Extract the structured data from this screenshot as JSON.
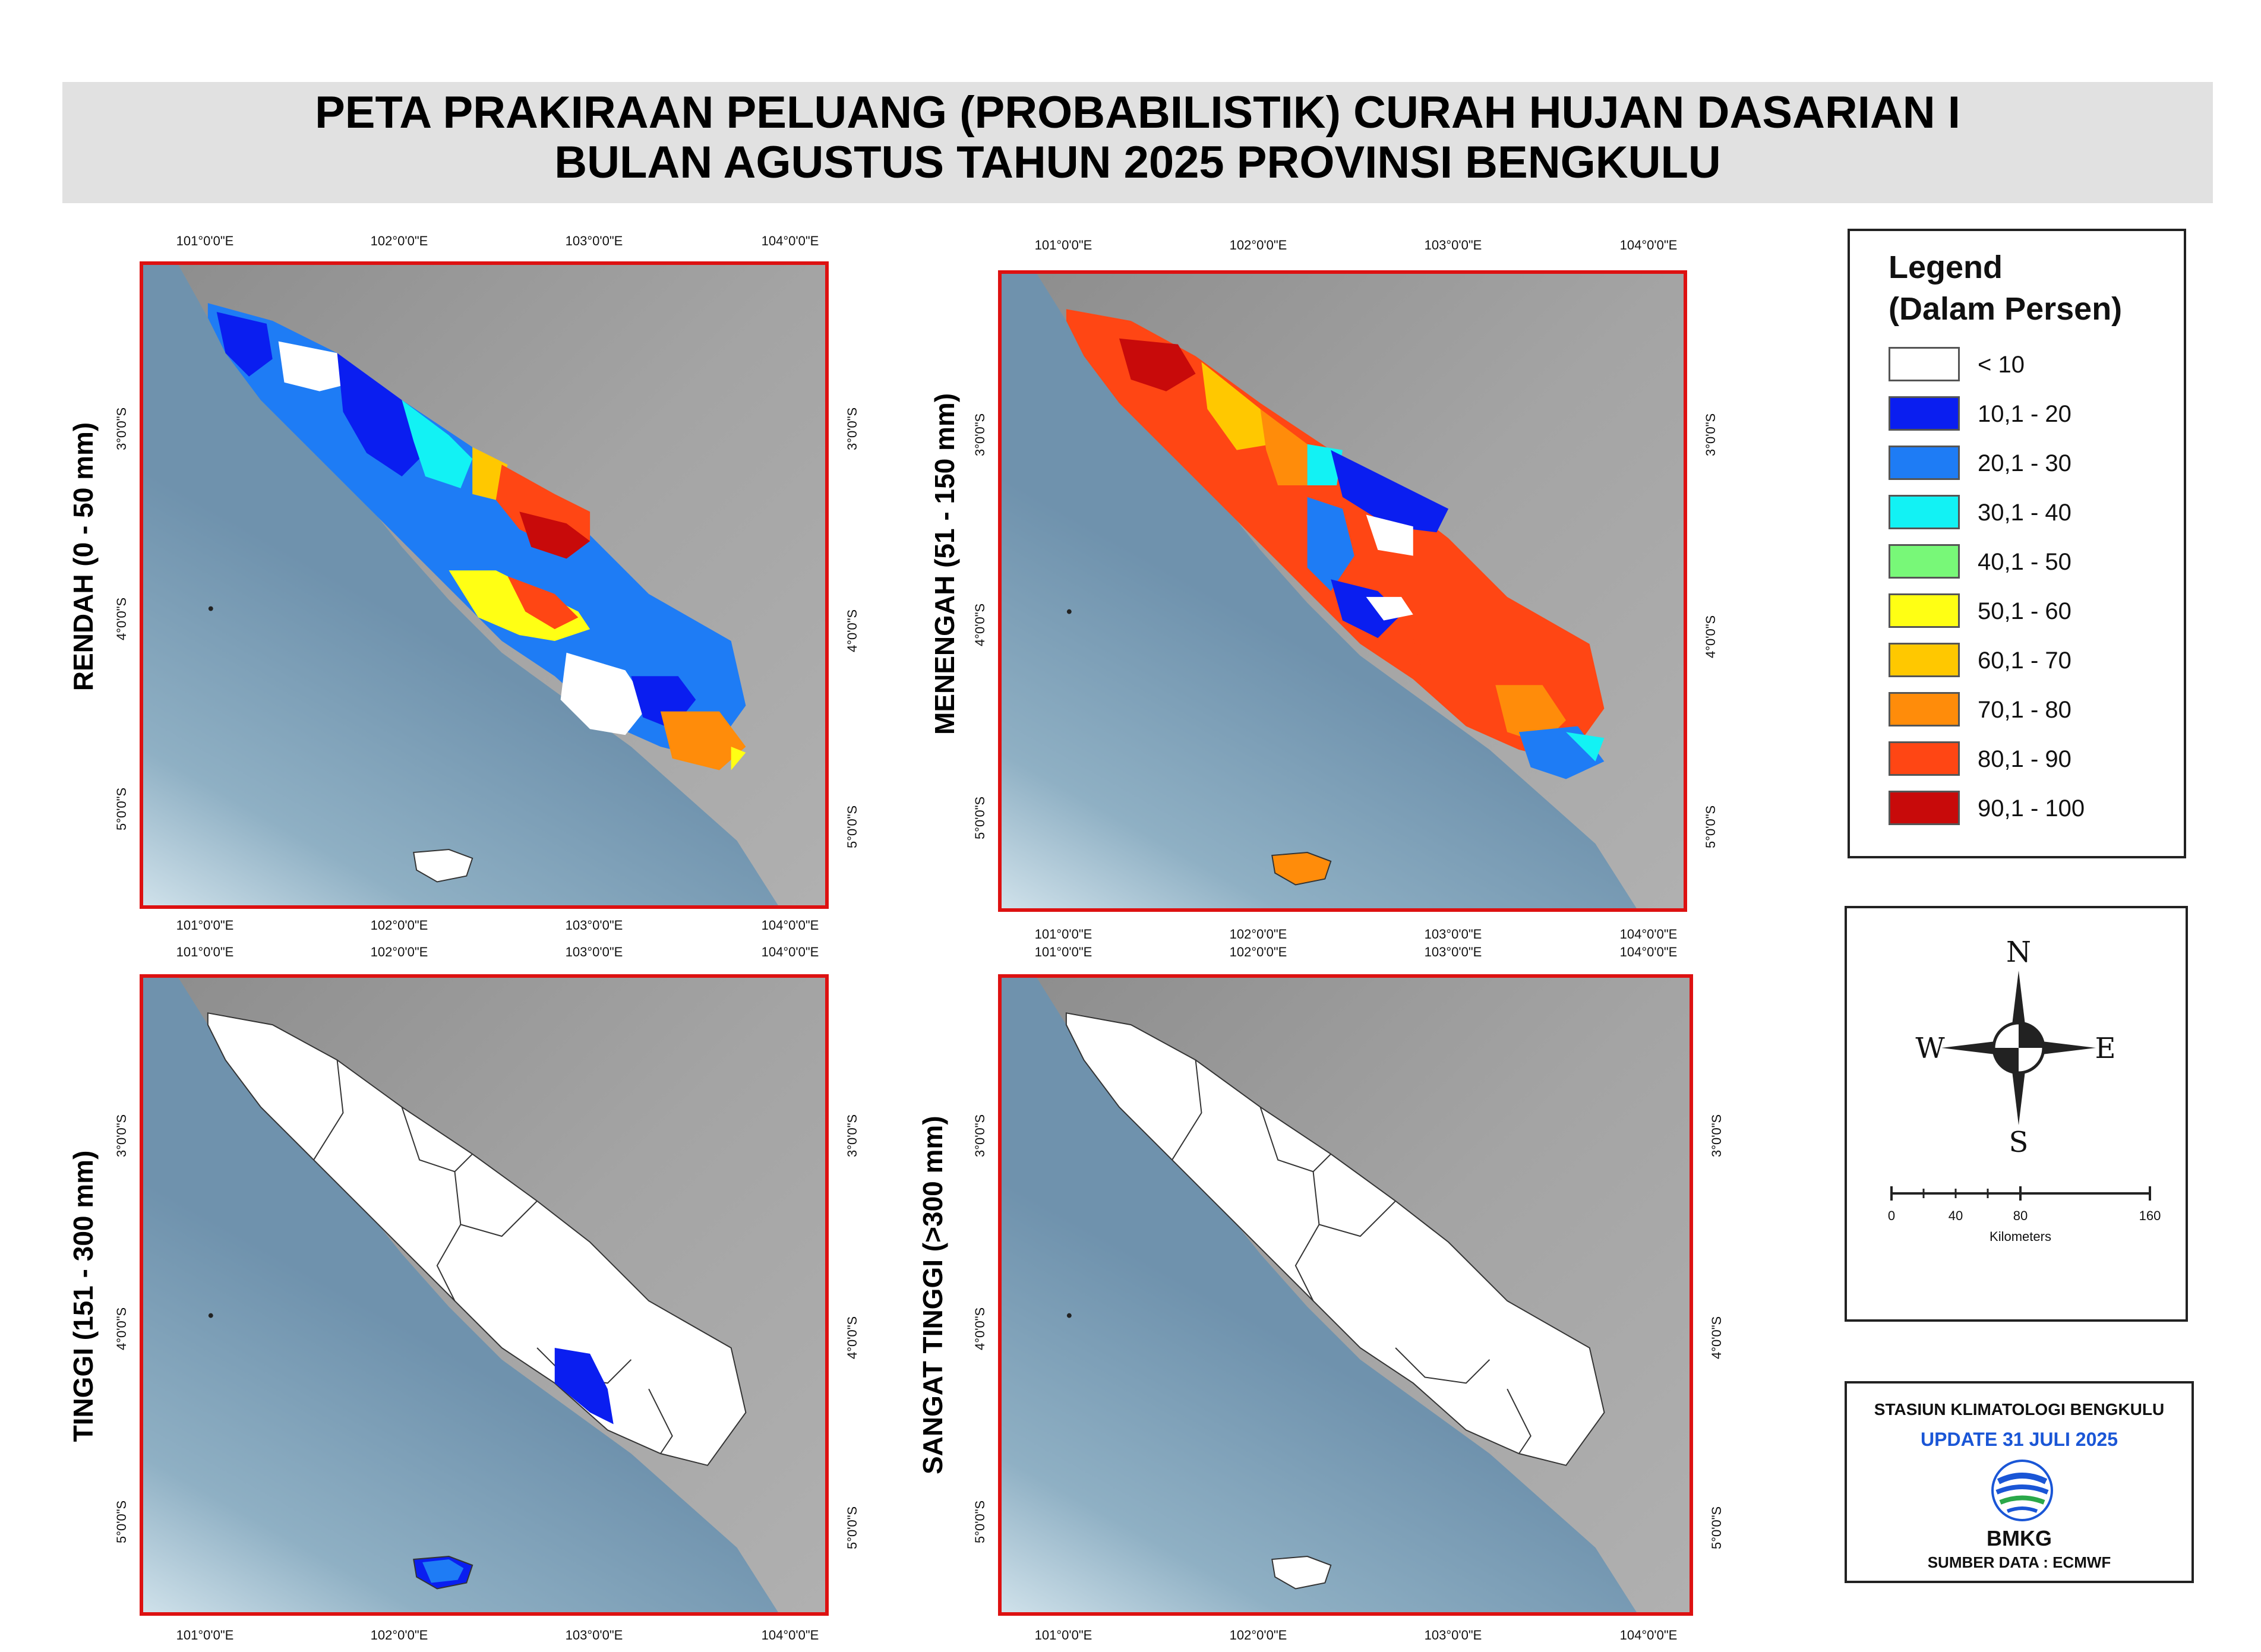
{
  "title": {
    "line1": "PETA PRAKIRAAN PELUANG (PROBABILISTIK) CURAH HUJAN DASARIAN I",
    "line2": "BULAN AGUSTUS TAHUN 2025 PROVINSI BENGKULU"
  },
  "panels": [
    {
      "label": "RENDAH (0 -  50 mm)",
      "fill": "mixed"
    },
    {
      "label": "MENENGAH (51 -  150 mm)",
      "fill": "mixed"
    },
    {
      "label": "TINGGI (151 -  300 mm)",
      "fill": "mostly-below-10"
    },
    {
      "label": "SANGAT TINGGI  (>300  mm)",
      "fill": "below-10"
    }
  ],
  "lon_ticks": [
    "101°0'0\"E",
    "102°0'0\"E",
    "103°0'0\"E",
    "104°0'0\"E"
  ],
  "lat_ticks": [
    "3°0'0\"S",
    "4°0'0\"S",
    "5°0'0\"S"
  ],
  "legend": {
    "title_line1": "Legend",
    "title_line2": "(Dalam Persen)",
    "items": [
      {
        "label": "< 10",
        "color": "#ffffff"
      },
      {
        "label": "10,1 - 20",
        "color": "#0a1ef0"
      },
      {
        "label": "20,1 - 30",
        "color": "#1e7cf5"
      },
      {
        "label": "30,1 - 40",
        "color": "#12f2f4"
      },
      {
        "label": "40,1 - 50",
        "color": "#78f878"
      },
      {
        "label": "50,1 - 60",
        "color": "#ffff14"
      },
      {
        "label": "60,1 - 70",
        "color": "#ffc800"
      },
      {
        "label": "70,1 - 80",
        "color": "#ff8c0a"
      },
      {
        "label": "80,1 - 90",
        "color": "#ff4614"
      },
      {
        "label": "90,1 - 100",
        "color": "#c80a0a"
      }
    ]
  },
  "compass": {
    "n": "N",
    "s": "S",
    "e": "E",
    "w": "W"
  },
  "scalebar": {
    "ticks": [
      "0",
      "40",
      "80",
      "160"
    ],
    "unit": "Kilometers"
  },
  "credits": {
    "station": "STASIUN KLIMATOLOGI BENGKULU",
    "update": "UPDATE  31 JULI 2025",
    "org": "BMKG",
    "source": "SUMBER DATA : ECMWF"
  },
  "colors": {
    "frame": "#dd1111",
    "sea": "#6f92ad",
    "land": "#9a9a9a",
    "title_band": "#e1e1e1",
    "update_text": "#1a56d6"
  }
}
